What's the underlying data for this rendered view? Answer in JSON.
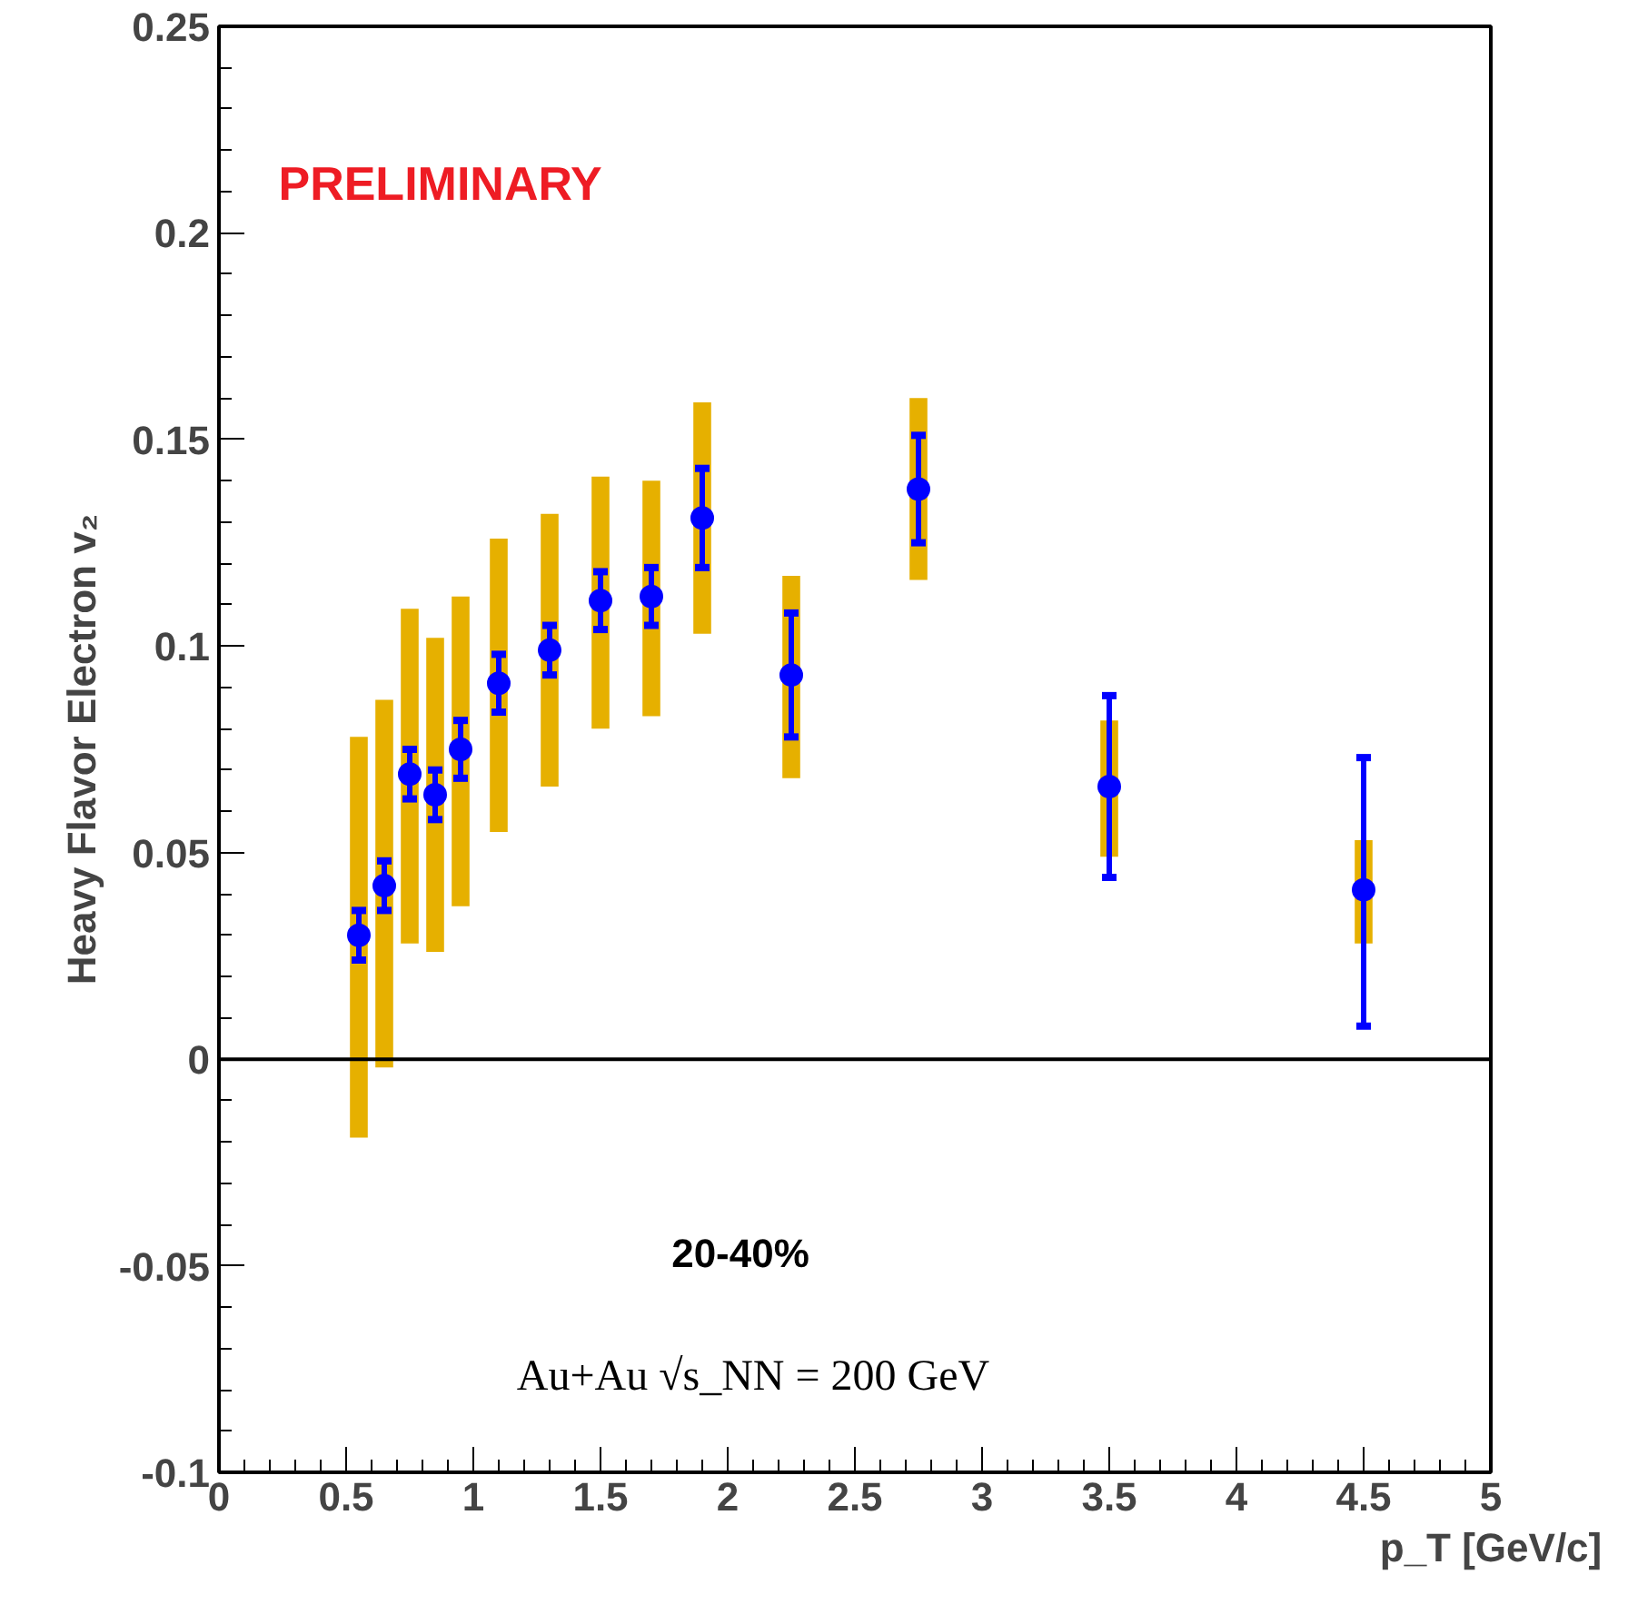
{
  "chart_data": {
    "type": "scatter",
    "xlabel": "p_T [GeV/c]",
    "ylabel": "Heavy Flavor Electron v₂",
    "xlim": [
      0,
      5
    ],
    "xticks": [
      0,
      0.5,
      1,
      1.5,
      2,
      2.5,
      3,
      3.5,
      4,
      4.5,
      5
    ],
    "ylim": [
      -0.1,
      0.25
    ],
    "yticks": [
      {
        "value": -0.1,
        "label": "-0.1"
      },
      {
        "value": -0.05,
        "label": "-0.05"
      },
      0,
      0.05,
      0.1,
      0.15,
      0.2,
      0.25
    ],
    "grid": false,
    "marker": "circle",
    "ref_lines": [
      {
        "axis": "y",
        "value": 0,
        "color": "#000000"
      }
    ],
    "annotations": [
      "PRELIMINARY",
      "20-40%",
      "Au+Au √s_NN = 200 GeV"
    ],
    "series": [
      {
        "type": "bar",
        "color": "#e6b000",
        "x": [
          0.55,
          0.65,
          0.75,
          0.85,
          0.95,
          1.1,
          1.3,
          1.5,
          1.7,
          1.9,
          2.25,
          2.75,
          3.5,
          4.5
        ],
        "base": [
          -0.019,
          -0.002,
          0.028,
          0.026,
          0.037,
          0.055,
          0.066,
          0.08,
          0.083,
          0.103,
          0.068,
          0.116,
          0.049,
          0.028
        ],
        "values": [
          0.097,
          0.089,
          0.081,
          0.076,
          0.075,
          0.071,
          0.066,
          0.061,
          0.057,
          0.056,
          0.049,
          0.044,
          0.033,
          0.025
        ]
      },
      {
        "color": "#0000ff",
        "x": [
          0.55,
          0.65,
          0.75,
          0.85,
          0.95,
          1.1,
          1.3,
          1.5,
          1.7,
          1.9,
          2.25,
          2.75,
          3.5,
          4.5
        ],
        "values": [
          0.03,
          0.042,
          0.069,
          0.064,
          0.075,
          0.091,
          0.099,
          0.111,
          0.112,
          0.131,
          0.093,
          0.138,
          0.066,
          0.041
        ],
        "errors": [
          0.006,
          0.006,
          0.006,
          0.006,
          0.007,
          0.007,
          0.006,
          0.007,
          0.007,
          0.012,
          0.015,
          0.013,
          [
            0.044,
            0.088
          ],
          [
            0.008,
            0.073
          ]
        ]
      }
    ]
  }
}
